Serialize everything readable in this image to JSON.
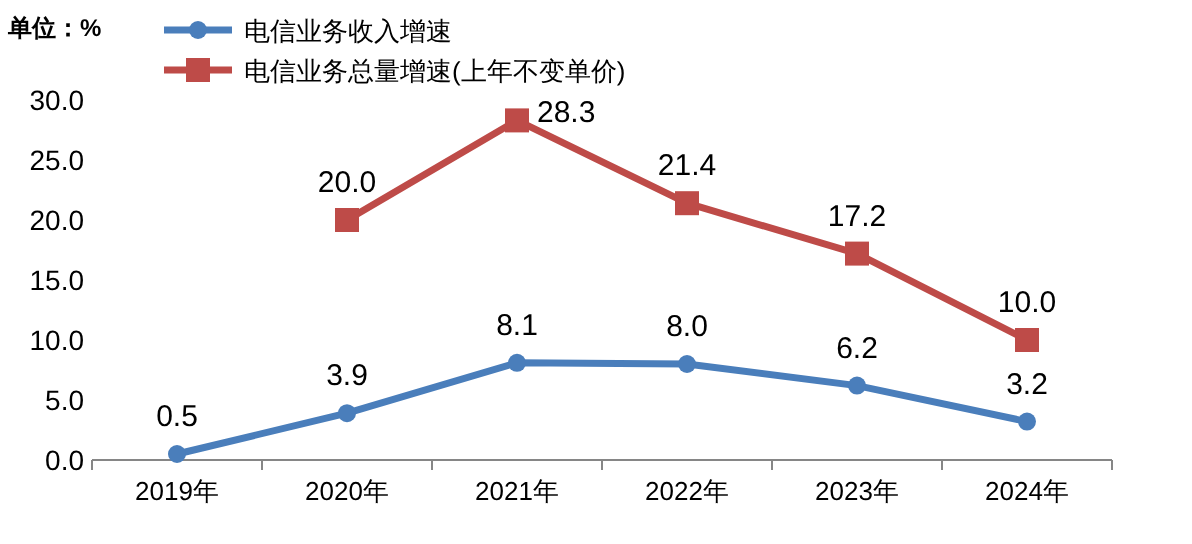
{
  "chart_data": {
    "type": "line",
    "ylabel": "单位：%",
    "categories": [
      "2019年",
      "2020年",
      "2021年",
      "2022年",
      "2023年",
      "2024年"
    ],
    "series": [
      {
        "name": "电信业务收入增速",
        "color": "#4a7ebb",
        "marker": "circle",
        "values": [
          0.5,
          3.9,
          8.1,
          8.0,
          6.2,
          3.2
        ],
        "value_labels": [
          "0.5",
          "3.9",
          "8.1",
          "8.0",
          "6.2",
          "3.2"
        ]
      },
      {
        "name": "电信业务总量增速(上年不变单价)",
        "color": "#be4b48",
        "marker": "square",
        "values": [
          null,
          20.0,
          28.3,
          21.4,
          17.2,
          10.0
        ],
        "value_labels": [
          null,
          "20.0",
          "28.3",
          "21.4",
          "17.2",
          "10.0"
        ]
      }
    ],
    "ylim": [
      0,
      30
    ],
    "yticks": [
      {
        "value": 0,
        "label": "0.0"
      },
      {
        "value": 5,
        "label": "5.0"
      },
      {
        "value": 10,
        "label": "10.0"
      },
      {
        "value": 15,
        "label": "15.0"
      },
      {
        "value": 20,
        "label": "20.0"
      },
      {
        "value": 25,
        "label": "25.0"
      },
      {
        "value": 30,
        "label": "30.0"
      }
    ],
    "grid": false,
    "legend": "top left"
  }
}
